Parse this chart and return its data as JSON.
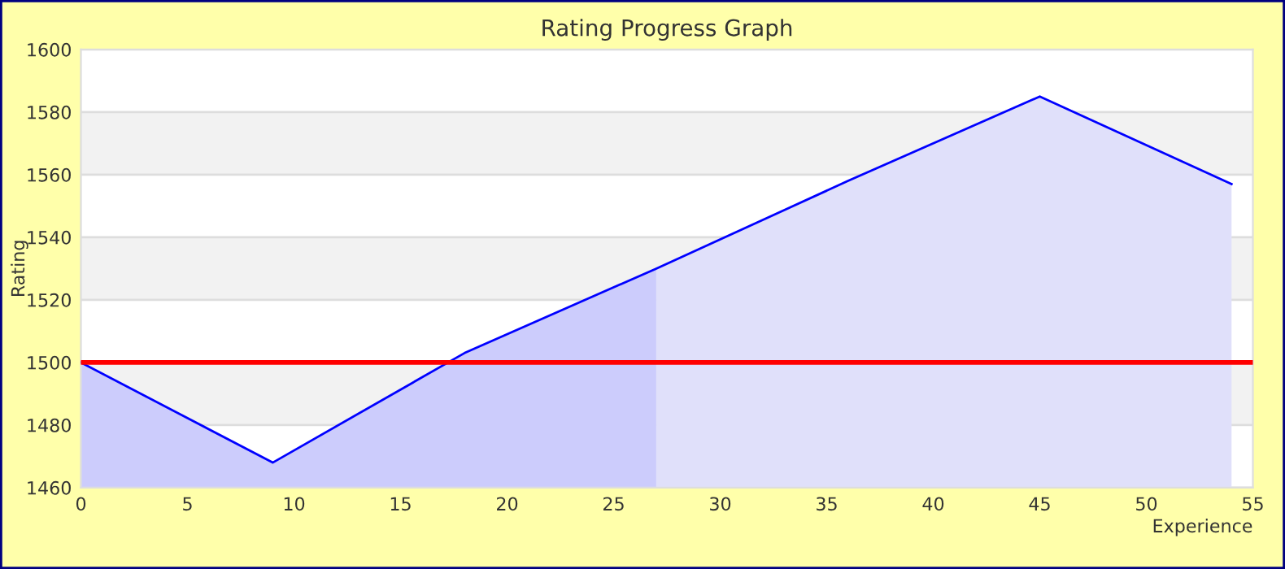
{
  "chart_data": {
    "type": "area",
    "title": "Rating Progress Graph",
    "xlabel": "Experience",
    "ylabel": "Rating",
    "series": [
      {
        "color": "#ccccfc",
        "x": [
          0,
          9,
          18,
          27
        ],
        "values": [
          1500,
          1468,
          1503,
          1530
        ]
      },
      {
        "color": "#e0e0fa",
        "x": [
          27,
          36,
          45,
          54
        ],
        "values": [
          1530,
          1558,
          1585,
          1557
        ]
      },
      {
        "type": "line",
        "color": "#0000ff",
        "x": [
          0,
          9,
          18,
          27,
          36,
          45,
          54
        ],
        "values": [
          1500,
          1468,
          1503,
          1530,
          1558,
          1585,
          1557
        ]
      }
    ],
    "xlim": [
      0,
      55
    ],
    "xticks": [
      0,
      5,
      10,
      15,
      20,
      25,
      30,
      35,
      40,
      45,
      50,
      55
    ],
    "ylim": [
      1460,
      1600
    ],
    "yticks": [
      1460,
      1480,
      1500,
      1520,
      1540,
      1560,
      1580,
      1600
    ],
    "ref_lines": [
      {
        "axis": "y",
        "value": 1500,
        "color": "#ff0000"
      }
    ],
    "grid": "y",
    "marker": "none"
  }
}
